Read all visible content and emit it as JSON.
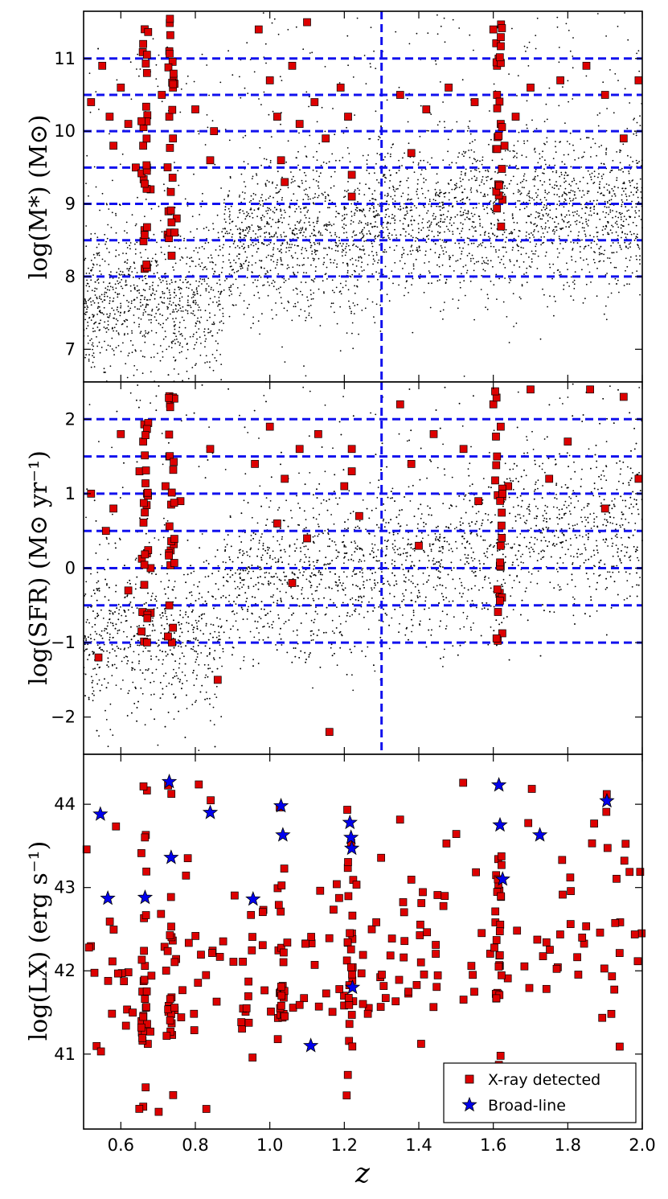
{
  "chart_data": [
    {
      "panel": "mass",
      "type": "scatter",
      "ylabel": "log(M*) (M⊙)",
      "xlim": [
        0.5,
        2.0
      ],
      "ylim": [
        6.55,
        11.65
      ],
      "yticks": [
        "7",
        "8",
        "9",
        "10",
        "11"
      ],
      "dashed_h_lines": [
        8.0,
        8.5,
        9.0,
        9.5,
        10.0,
        10.5,
        11.0
      ],
      "dashed_v_line": 1.3,
      "x_detected": [
        0.52,
        0.55,
        0.57,
        0.58,
        0.6,
        0.62,
        0.64,
        0.66,
        0.67,
        0.68,
        0.71,
        0.73,
        0.74,
        0.75,
        0.8,
        0.84,
        0.85,
        0.97,
        1.0,
        1.02,
        1.03,
        1.04,
        1.06,
        1.08,
        1.1,
        1.12,
        1.15,
        1.19,
        1.21,
        1.22,
        1.35,
        1.38,
        1.42,
        1.48,
        1.55,
        1.6,
        1.61,
        1.62,
        1.63,
        1.66,
        1.7,
        1.78,
        1.85,
        1.9,
        1.95,
        1.99,
        0.66,
        0.73,
        1.61,
        0.67,
        0.74,
        1.22
      ],
      "y_detected": [
        10.4,
        10.9,
        10.2,
        9.8,
        10.6,
        10.1,
        9.5,
        11.2,
        10.8,
        9.2,
        10.5,
        11.1,
        9.9,
        8.8,
        10.3,
        9.6,
        10.0,
        11.4,
        10.7,
        10.2,
        9.6,
        9.3,
        10.9,
        10.1,
        11.5,
        10.4,
        9.9,
        10.6,
        10.2,
        9.1,
        10.5,
        9.7,
        10.3,
        10.6,
        10.4,
        11.4,
        10.9,
        10.1,
        9.8,
        10.2,
        10.6,
        10.7,
        10.9,
        10.5,
        9.9,
        10.7,
        9.8,
        10.2,
        10.5,
        9.5,
        10.6,
        9.4
      ],
      "x_background_range": [
        0.5,
        2.0
      ],
      "y_background_range": [
        6.55,
        11.2
      ]
    },
    {
      "panel": "sfr",
      "type": "scatter",
      "ylabel": "log(SFR) (M⊙ yr⁻¹)",
      "xlim": [
        0.5,
        2.0
      ],
      "ylim": [
        -2.5,
        2.5
      ],
      "yticks": [
        "−2",
        "−1",
        "0",
        "1",
        "2"
      ],
      "dashed_h_lines": [
        -1.0,
        -0.5,
        0.0,
        0.5,
        1.0,
        1.5,
        2.0
      ],
      "dashed_v_line": 1.3,
      "x_detected": [
        0.52,
        0.54,
        0.56,
        0.58,
        0.6,
        0.62,
        0.65,
        0.66,
        0.67,
        0.68,
        0.72,
        0.73,
        0.74,
        0.76,
        0.84,
        0.86,
        0.96,
        1.0,
        1.02,
        1.04,
        1.06,
        1.08,
        1.1,
        1.13,
        1.16,
        1.2,
        1.22,
        1.24,
        1.35,
        1.38,
        1.4,
        1.44,
        1.52,
        1.56,
        1.6,
        1.61,
        1.62,
        1.64,
        1.7,
        1.75,
        1.8,
        1.86,
        1.9,
        1.95,
        1.99,
        0.67,
        0.73,
        1.62,
        0.68,
        1.22
      ],
      "y_detected": [
        1.0,
        -1.2,
        0.5,
        0.8,
        1.8,
        -0.3,
        1.3,
        1.7,
        0.2,
        -0.6,
        1.1,
        1.5,
        -0.8,
        0.9,
        1.6,
        -1.5,
        1.4,
        1.9,
        0.6,
        1.2,
        -0.2,
        1.6,
        0.4,
        1.8,
        -2.2,
        1.1,
        1.6,
        0.7,
        2.2,
        1.4,
        0.3,
        1.8,
        1.6,
        0.9,
        2.2,
        1.5,
        0.3,
        1.1,
        2.4,
        1.2,
        1.7,
        2.4,
        0.8,
        2.3,
        1.2,
        1.0,
        -0.5,
        1.9,
        0.0,
        1.3
      ],
      "x_background_range": [
        0.5,
        2.0
      ],
      "y_background_range": [
        -2.5,
        2.4
      ]
    },
    {
      "panel": "lx",
      "type": "scatter",
      "ylabel": "log(LX) (erg s⁻¹)",
      "xlabel": "z",
      "xlim": [
        0.5,
        2.0
      ],
      "ylim": [
        40.1,
        44.6
      ],
      "xticks": [
        "0.6",
        "0.8",
        "1.0",
        "1.2",
        "1.4",
        "1.6",
        "1.8",
        "2.0"
      ],
      "yticks": [
        "41",
        "42",
        "43",
        "44"
      ],
      "legend": {
        "placement": "bottom-right",
        "entries": [
          "X-ray detected",
          "Broad-line"
        ]
      },
      "broad_line": {
        "x": [
          0.545,
          0.565,
          0.665,
          0.73,
          0.735,
          0.84,
          0.955,
          1.03,
          1.035,
          1.11,
          1.215,
          1.218,
          1.22,
          1.222,
          1.615,
          1.618,
          1.625,
          1.725,
          1.905
        ],
        "y": [
          43.88,
          42.87,
          42.88,
          44.27,
          43.36,
          43.9,
          42.86,
          43.98,
          43.63,
          41.1,
          43.78,
          43.6,
          43.47,
          41.8,
          44.23,
          43.75,
          43.1,
          43.63,
          44.04
        ]
      },
      "x_detected_range": [
        0.5,
        2.0
      ],
      "y_detected_range": [
        40.3,
        44.3
      ]
    }
  ]
}
